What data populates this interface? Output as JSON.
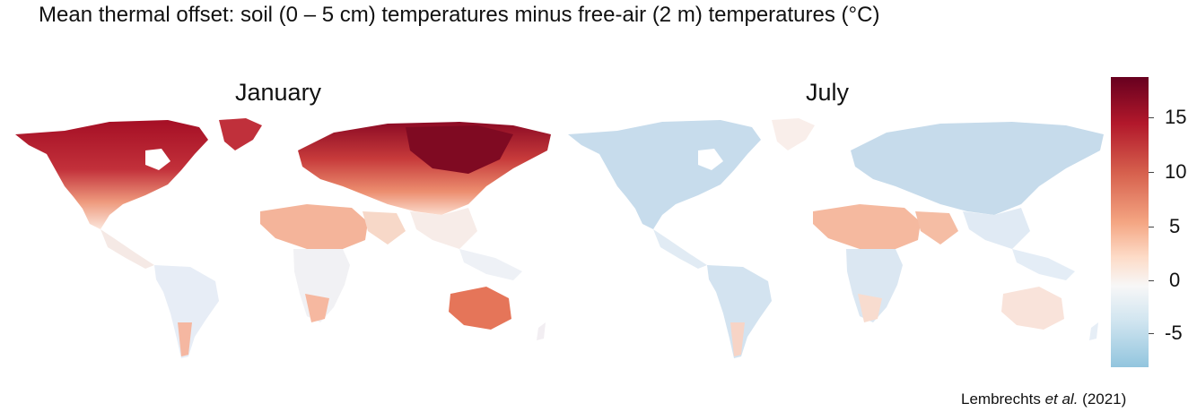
{
  "title": "Mean thermal offset: soil (0 – 5 cm) temperatures minus free-air (2 m) temperatures (°C)",
  "panels": {
    "january": {
      "label": "January"
    },
    "july": {
      "label": "July"
    }
  },
  "legend": {
    "ticks": [
      "15",
      "10",
      "5",
      "0",
      "-5"
    ],
    "colors": {
      "max": "#67001f",
      "high": "#b2182b",
      "mid_high": "#d6604d",
      "low_high": "#f4a582",
      "light": "#fddbc7",
      "zero": "#f7f7f7",
      "neg_light": "#d1e5f0",
      "neg": "#92c5de"
    }
  },
  "credit": {
    "author": "Lembrechts",
    "etal": "et al.",
    "year": "(2021)"
  }
}
